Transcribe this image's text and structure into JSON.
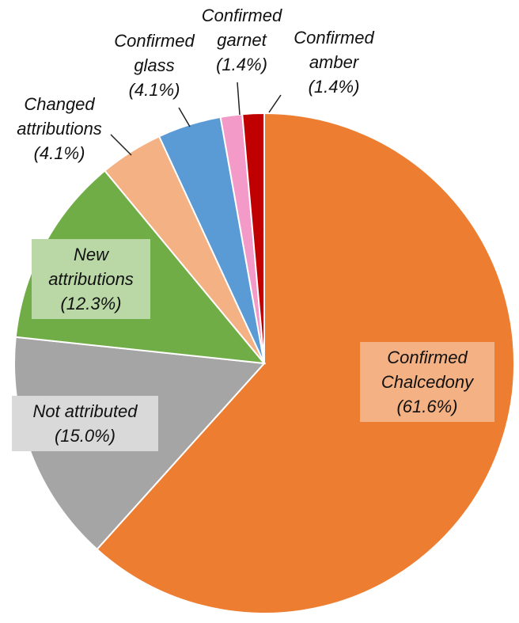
{
  "chart_data": {
    "type": "pie",
    "categories": [
      "Confirmed Chalcedony",
      "Not attributed",
      "New attributions",
      "Changed attributions",
      "Confirmed glass",
      "Confirmed garnet",
      "Confirmed amber"
    ],
    "values": [
      61.6,
      15.0,
      12.3,
      4.1,
      4.1,
      1.4,
      1.4
    ],
    "value_labels": [
      "(61.6%)",
      "(15.0%)",
      "(12.3%)",
      "(4.1%)",
      "(4.1%)",
      "(1.4%)",
      "(1.4%)"
    ],
    "colors": [
      "#ED7D31",
      "#A5A5A5",
      "#70AD47",
      "#F4B183",
      "#5B9BD5",
      "#F49AC8",
      "#C00000"
    ]
  }
}
